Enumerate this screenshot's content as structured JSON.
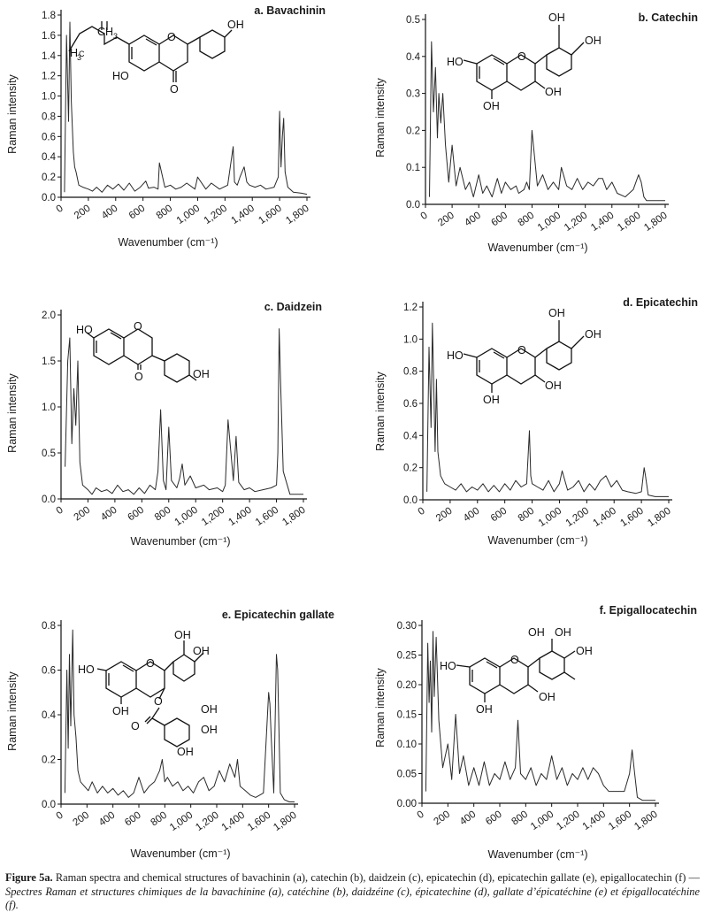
{
  "figure": {
    "caption": {
      "label": "Figure 5a.",
      "text_en": " Raman spectra and chemical structures of bavachinin (a), catechin (b), daidzein (c), epicatechin (d), epicatechin gallate (e), epigallocatechin (f) — ",
      "text_fr": "Spectres Raman et structures chimiques de la bavachinine (a), catéchine (b), daidzéine (c), épicatechine (d), gallate d’épicatéchine (e) et épigallocatéchine (f)."
    }
  },
  "chart_data": [
    {
      "id": "a",
      "type": "line",
      "title": "a. Bavachinin",
      "xlabel": "Wavenumber (cm⁻¹)",
      "ylabel": "Raman intensity",
      "xlim": [
        0,
        1800
      ],
      "ylim": [
        0,
        1.8
      ],
      "xticks": [
        "0",
        "200",
        "400",
        "600",
        "800",
        "1,000",
        "1,200",
        "1,400",
        "1,600",
        "1,800"
      ],
      "yticks": [
        "0.0",
        "0.2",
        "0.4",
        "0.6",
        "0.8",
        "1.0",
        "1.2",
        "1.4",
        "1.6",
        "1.8"
      ],
      "x": [
        25,
        40,
        55,
        65,
        75,
        90,
        100,
        110,
        130,
        160,
        200,
        230,
        260,
        300,
        340,
        380,
        420,
        460,
        500,
        540,
        580,
        620,
        640,
        680,
        710,
        720,
        760,
        800,
        840,
        880,
        920,
        980,
        1000,
        1060,
        1100,
        1160,
        1220,
        1260,
        1270,
        1290,
        1310,
        1340,
        1360,
        1380,
        1420,
        1460,
        1500,
        1560,
        1590,
        1600,
        1610,
        1620,
        1630,
        1640,
        1660,
        1700,
        1760,
        1800
      ],
      "y": [
        0.05,
        1.6,
        0.75,
        1.73,
        0.95,
        0.45,
        0.3,
        0.25,
        0.12,
        0.1,
        0.08,
        0.06,
        0.1,
        0.05,
        0.12,
        0.08,
        0.13,
        0.07,
        0.14,
        0.06,
        0.1,
        0.16,
        0.09,
        0.1,
        0.08,
        0.34,
        0.1,
        0.12,
        0.08,
        0.1,
        0.14,
        0.08,
        0.2,
        0.08,
        0.14,
        0.08,
        0.12,
        0.5,
        0.15,
        0.12,
        0.2,
        0.3,
        0.15,
        0.12,
        0.1,
        0.12,
        0.08,
        0.1,
        0.2,
        0.85,
        0.3,
        0.6,
        0.78,
        0.25,
        0.1,
        0.05,
        0.04,
        0.03
      ]
    },
    {
      "id": "b",
      "type": "line",
      "title": "b. Catechin",
      "xlabel": "Wavenumber (cm⁻¹)",
      "ylabel": "Raman intensity",
      "xlim": [
        0,
        1800
      ],
      "ylim": [
        0,
        0.5
      ],
      "xticks": [
        "0",
        "200",
        "400",
        "600",
        "800",
        "1,000",
        "1,200",
        "1,400",
        "1,600",
        "1,800"
      ],
      "yticks": [
        "0.0",
        "0.1",
        "0.2",
        "0.3",
        "0.4",
        "0.5"
      ],
      "x": [
        30,
        45,
        60,
        75,
        90,
        100,
        115,
        130,
        150,
        175,
        200,
        230,
        260,
        300,
        330,
        360,
        400,
        430,
        460,
        500,
        540,
        570,
        600,
        640,
        680,
        700,
        740,
        760,
        780,
        800,
        840,
        880,
        920,
        960,
        1000,
        1020,
        1060,
        1100,
        1140,
        1180,
        1220,
        1260,
        1300,
        1330,
        1360,
        1400,
        1440,
        1500,
        1560,
        1600,
        1620,
        1640,
        1660,
        1700,
        1760,
        1800
      ],
      "y": [
        0.02,
        0.44,
        0.25,
        0.37,
        0.18,
        0.3,
        0.22,
        0.3,
        0.16,
        0.06,
        0.16,
        0.05,
        0.1,
        0.04,
        0.06,
        0.02,
        0.08,
        0.03,
        0.05,
        0.02,
        0.07,
        0.03,
        0.06,
        0.04,
        0.05,
        0.03,
        0.04,
        0.06,
        0.04,
        0.2,
        0.05,
        0.08,
        0.04,
        0.06,
        0.04,
        0.1,
        0.05,
        0.04,
        0.07,
        0.04,
        0.06,
        0.05,
        0.07,
        0.07,
        0.04,
        0.06,
        0.03,
        0.02,
        0.04,
        0.08,
        0.06,
        0.02,
        0.01,
        0.01,
        0.01,
        0.01
      ]
    },
    {
      "id": "c",
      "type": "line",
      "title": "c. Daidzein",
      "xlabel": "Wavenumber (cm⁻¹)",
      "ylabel": "Raman intensity",
      "xlim": [
        0,
        1800
      ],
      "ylim": [
        0,
        2.0
      ],
      "xticks": [
        "0",
        "200",
        "400",
        "600",
        "800",
        "1,000",
        "1,200",
        "1,400",
        "1,600",
        "1,800"
      ],
      "yticks": [
        "0.0",
        "0.5",
        "1.0",
        "1.5",
        "2.0"
      ],
      "x": [
        30,
        50,
        65,
        80,
        95,
        110,
        125,
        140,
        160,
        200,
        230,
        260,
        300,
        340,
        380,
        420,
        460,
        500,
        540,
        580,
        620,
        660,
        700,
        720,
        740,
        760,
        780,
        800,
        820,
        860,
        880,
        900,
        920,
        960,
        1000,
        1060,
        1100,
        1160,
        1200,
        1220,
        1240,
        1280,
        1300,
        1320,
        1360,
        1400,
        1440,
        1500,
        1560,
        1600,
        1610,
        1620,
        1630,
        1650,
        1700,
        1760,
        1800
      ],
      "y": [
        0.35,
        1.5,
        1.75,
        0.6,
        1.2,
        0.8,
        1.5,
        0.4,
        0.15,
        0.1,
        0.05,
        0.12,
        0.08,
        0.1,
        0.06,
        0.15,
        0.08,
        0.1,
        0.05,
        0.12,
        0.06,
        0.15,
        0.1,
        0.3,
        0.97,
        0.2,
        0.1,
        0.78,
        0.2,
        0.12,
        0.22,
        0.38,
        0.15,
        0.25,
        0.12,
        0.15,
        0.1,
        0.12,
        0.08,
        0.15,
        0.86,
        0.2,
        0.68,
        0.18,
        0.1,
        0.12,
        0.08,
        0.1,
        0.12,
        0.15,
        0.5,
        1.85,
        1.3,
        0.3,
        0.05,
        0.05,
        0.05
      ]
    },
    {
      "id": "d",
      "type": "line",
      "title": "d. Epicatechin",
      "xlabel": "Wavenumber (cm⁻¹)",
      "ylabel": "Raman intensity",
      "xlim": [
        0,
        1800
      ],
      "ylim": [
        0,
        1.2
      ],
      "xticks": [
        "0",
        "200",
        "400",
        "600",
        "800",
        "1,000",
        "1,200",
        "1,400",
        "1,600",
        "1,800"
      ],
      "yticks": [
        "0.0",
        "0.2",
        "0.4",
        "0.6",
        "0.8",
        "1.0",
        "1.2"
      ],
      "x": [
        30,
        45,
        60,
        70,
        80,
        90,
        100,
        110,
        130,
        160,
        200,
        240,
        280,
        320,
        360,
        400,
        440,
        480,
        520,
        560,
        600,
        640,
        680,
        720,
        760,
        780,
        790,
        800,
        840,
        880,
        920,
        960,
        1000,
        1020,
        1060,
        1100,
        1140,
        1180,
        1220,
        1260,
        1300,
        1340,
        1380,
        1420,
        1460,
        1500,
        1560,
        1600,
        1620,
        1630,
        1650,
        1700,
        1760,
        1800
      ],
      "y": [
        0.05,
        0.95,
        0.45,
        1.1,
        0.7,
        0.3,
        0.75,
        0.3,
        0.15,
        0.1,
        0.08,
        0.06,
        0.1,
        0.05,
        0.08,
        0.06,
        0.1,
        0.05,
        0.09,
        0.05,
        0.1,
        0.06,
        0.12,
        0.08,
        0.1,
        0.43,
        0.15,
        0.1,
        0.08,
        0.06,
        0.12,
        0.05,
        0.1,
        0.18,
        0.06,
        0.08,
        0.12,
        0.05,
        0.1,
        0.06,
        0.12,
        0.15,
        0.08,
        0.12,
        0.06,
        0.05,
        0.04,
        0.05,
        0.2,
        0.15,
        0.03,
        0.02,
        0.02,
        0.02
      ]
    },
    {
      "id": "e",
      "type": "line",
      "title": "e. Epicatechin gallate",
      "xlabel": "Wavenumber (cm⁻¹)",
      "ylabel": "Raman intensity",
      "xlim": [
        0,
        1800
      ],
      "ylim": [
        0,
        0.8
      ],
      "xticks": [
        "0",
        "200",
        "400",
        "600",
        "800",
        "1,000",
        "1,200",
        "1,400",
        "1,600",
        "1,800"
      ],
      "yticks": [
        "0.0",
        "0.2",
        "0.4",
        "0.6",
        "0.8"
      ],
      "x": [
        30,
        45,
        55,
        65,
        75,
        90,
        100,
        115,
        130,
        150,
        180,
        210,
        240,
        280,
        320,
        360,
        400,
        440,
        480,
        520,
        560,
        600,
        640,
        680,
        720,
        760,
        780,
        800,
        820,
        860,
        900,
        940,
        980,
        1020,
        1060,
        1100,
        1140,
        1180,
        1220,
        1260,
        1300,
        1340,
        1360,
        1380,
        1420,
        1460,
        1500,
        1560,
        1600,
        1610,
        1620,
        1640,
        1660,
        1670,
        1690,
        1720,
        1760,
        1800
      ],
      "y": [
        0.05,
        0.6,
        0.25,
        0.67,
        0.35,
        0.78,
        0.4,
        0.3,
        0.15,
        0.1,
        0.08,
        0.06,
        0.1,
        0.05,
        0.08,
        0.05,
        0.07,
        0.04,
        0.06,
        0.03,
        0.05,
        0.12,
        0.05,
        0.08,
        0.1,
        0.15,
        0.2,
        0.1,
        0.12,
        0.08,
        0.1,
        0.06,
        0.08,
        0.05,
        0.1,
        0.12,
        0.06,
        0.08,
        0.15,
        0.1,
        0.18,
        0.12,
        0.2,
        0.08,
        0.06,
        0.04,
        0.03,
        0.05,
        0.5,
        0.45,
        0.3,
        0.05,
        0.67,
        0.6,
        0.05,
        0.02,
        0.01,
        0.01
      ]
    },
    {
      "id": "f",
      "type": "line",
      "title": "f. Epigallocatechin",
      "xlabel": "Wavenumber (cm⁻¹)",
      "ylabel": "Raman intensity",
      "xlim": [
        0,
        1800
      ],
      "ylim": [
        0,
        0.3
      ],
      "xticks": [
        "0",
        "200",
        "400",
        "600",
        "800",
        "1,000",
        "1,200",
        "1,400",
        "1,600",
        "1,800"
      ],
      "yticks": [
        "0.00",
        "0.05",
        "0.10",
        "0.15",
        "0.20",
        "0.25",
        "0.30"
      ],
      "x": [
        30,
        45,
        55,
        65,
        75,
        85,
        95,
        110,
        130,
        160,
        200,
        230,
        260,
        290,
        320,
        360,
        400,
        440,
        480,
        520,
        560,
        600,
        640,
        680,
        720,
        740,
        760,
        800,
        840,
        880,
        920,
        960,
        1000,
        1040,
        1080,
        1120,
        1160,
        1200,
        1240,
        1280,
        1320,
        1360,
        1400,
        1440,
        1500,
        1560,
        1600,
        1620,
        1640,
        1660,
        1700,
        1760,
        1800
      ],
      "y": [
        0.02,
        0.27,
        0.17,
        0.24,
        0.12,
        0.29,
        0.18,
        0.28,
        0.14,
        0.06,
        0.1,
        0.04,
        0.15,
        0.05,
        0.08,
        0.03,
        0.06,
        0.03,
        0.07,
        0.03,
        0.05,
        0.04,
        0.07,
        0.04,
        0.06,
        0.14,
        0.05,
        0.04,
        0.06,
        0.03,
        0.05,
        0.04,
        0.08,
        0.04,
        0.06,
        0.03,
        0.05,
        0.04,
        0.06,
        0.04,
        0.06,
        0.05,
        0.03,
        0.02,
        0.02,
        0.02,
        0.05,
        0.09,
        0.05,
        0.01,
        0.005,
        0.005,
        0.005
      ]
    }
  ],
  "molecules": {
    "a": {
      "labels": [
        "OH",
        "HO",
        "O",
        "O",
        "H",
        "C",
        "3",
        "CH",
        "3"
      ]
    },
    "b": {
      "labels": [
        "OH",
        "OH",
        "HO",
        "O",
        "OH",
        "OH"
      ]
    },
    "c": {
      "labels": [
        "HO",
        "O",
        "O",
        "OH"
      ]
    },
    "d": {
      "labels": [
        "OH",
        "OH",
        "HO",
        "O",
        "OH",
        "OH"
      ]
    },
    "e": {
      "labels": [
        "OH",
        "OH",
        "HO",
        "O",
        "O",
        "OH",
        "OH",
        "OH",
        "O",
        "OH"
      ]
    },
    "f": {
      "labels": [
        "OH",
        "OH",
        "OH",
        "HO",
        "O",
        "OH",
        "OH"
      ]
    }
  }
}
